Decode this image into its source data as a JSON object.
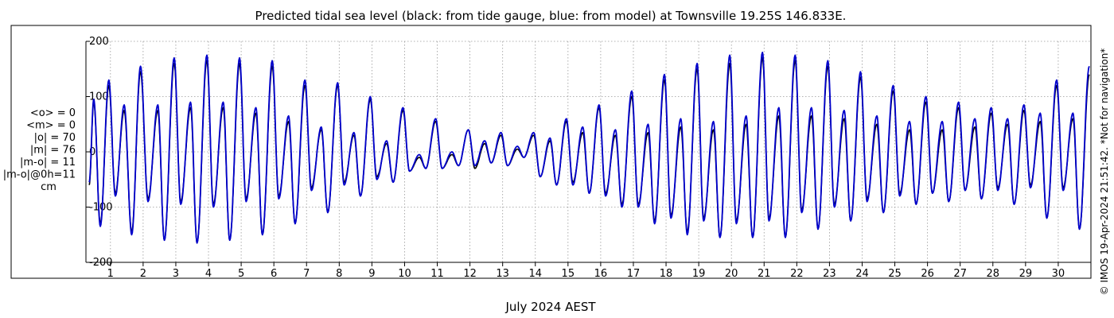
{
  "title": "Predicted tidal sea level (black: from tide gauge, blue: from model) at Townsville 19.25S 146.833E.",
  "side_note": "© IMOS 19-Apr-2024 21:51:42. *Not for navigation*",
  "stats": {
    "lines": [
      "<o> = 0",
      "<m> = 0",
      "|o| = 70",
      "|m| = 76",
      "|m-o| = 11",
      "|m-o|@0h=11",
      "cm"
    ]
  },
  "colors": {
    "observed": "#000000",
    "model": "#0000cc",
    "grid": "#999999"
  },
  "chart_data": {
    "type": "line",
    "title": "Predicted tidal sea level (black: from tide gauge, blue: from model) at Townsville 19.25S 146.833E.",
    "xlabel": "July 2024 AEST",
    "ylabel": "",
    "xlim": [
      0.25,
      31
    ],
    "ylim": [
      -200,
      200
    ],
    "x_ticks": [
      1,
      2,
      3,
      4,
      5,
      6,
      7,
      8,
      9,
      10,
      11,
      12,
      13,
      14,
      15,
      16,
      17,
      18,
      19,
      20,
      21,
      22,
      23,
      24,
      25,
      26,
      27,
      28,
      29,
      30
    ],
    "x_tick_labels": [
      "1",
      "2",
      "3",
      "4",
      "5",
      "6",
      "7",
      "8",
      "9",
      "10",
      "11",
      "12",
      "13",
      "14",
      "15",
      "16",
      "17",
      "18",
      "19",
      "20",
      "21",
      "22",
      "23",
      "24",
      "25",
      "26",
      "27",
      "28",
      "29",
      "30"
    ],
    "y_ticks": [
      -200,
      -100,
      0,
      100,
      200
    ],
    "y_tick_labels": [
      "-200",
      "-100",
      "0",
      "100",
      "200"
    ],
    "grid": true,
    "series": [
      {
        "label": "black: from tide gauge",
        "color": "#000000",
        "x": [
          0.35,
          0.49,
          0.69,
          0.95,
          1.15,
          1.42,
          1.65,
          1.92,
          2.15,
          2.45,
          2.65,
          2.95,
          3.15,
          3.45,
          3.65,
          3.95,
          4.15,
          4.45,
          4.65,
          4.95,
          5.15,
          5.45,
          5.65,
          5.95,
          6.15,
          6.45,
          6.65,
          6.95,
          7.15,
          7.45,
          7.65,
          7.95,
          8.15,
          8.45,
          8.65,
          8.95,
          9.15,
          9.45,
          9.65,
          9.95,
          10.15,
          10.45,
          10.65,
          10.95,
          11.15,
          11.45,
          11.65,
          11.95,
          12.15,
          12.45,
          12.65,
          12.95,
          13.15,
          13.45,
          13.65,
          13.95,
          14.15,
          14.45,
          14.65,
          14.95,
          15.15,
          15.45,
          15.65,
          15.95,
          16.15,
          16.45,
          16.65,
          16.95,
          17.15,
          17.45,
          17.65,
          17.95,
          18.15,
          18.45,
          18.65,
          18.95,
          19.15,
          19.45,
          19.65,
          19.95,
          20.15,
          20.45,
          20.65,
          20.95,
          21.15,
          21.45,
          21.65,
          21.95,
          22.15,
          22.45,
          22.65,
          22.95,
          23.15,
          23.45,
          23.65,
          23.95,
          24.15,
          24.45,
          24.65,
          24.95,
          25.15,
          25.45,
          25.65,
          25.95,
          26.15,
          26.45,
          26.65,
          26.95,
          27.15,
          27.45,
          27.65,
          27.95,
          28.15,
          28.45,
          28.65,
          28.95,
          29.15,
          29.45,
          29.65,
          29.95,
          30.15,
          30.45,
          30.65,
          30.95
        ],
        "values": [
          -60,
          90,
          -130,
          120,
          -75,
          75,
          -145,
          145,
          -85,
          75,
          -160,
          160,
          -90,
          80,
          -165,
          165,
          -95,
          80,
          -160,
          160,
          -85,
          70,
          -150,
          155,
          -80,
          55,
          -130,
          120,
          -65,
          40,
          -110,
          120,
          -55,
          30,
          -80,
          95,
          -45,
          15,
          -55,
          75,
          -35,
          -10,
          -30,
          55,
          -30,
          -5,
          -25,
          40,
          -30,
          15,
          -20,
          30,
          -25,
          5,
          -10,
          30,
          -45,
          20,
          -60,
          55,
          -55,
          35,
          -75,
          80,
          -75,
          30,
          -95,
          100,
          -95,
          35,
          -125,
          130,
          -115,
          45,
          -145,
          150,
          -120,
          40,
          -155,
          160,
          -125,
          50,
          -155,
          170,
          -120,
          65,
          -155,
          165,
          -105,
          65,
          -140,
          155,
          -95,
          60,
          -125,
          135,
          -85,
          50,
          -110,
          110,
          -75,
          40,
          -95,
          90,
          -75,
          40,
          -90,
          80,
          -70,
          45,
          -85,
          70,
          -65,
          50,
          -95,
          75,
          -60,
          55,
          -120,
          120,
          -65,
          60,
          -140,
          140
        ]
      },
      {
        "label": "blue: from model",
        "color": "#0000cc",
        "x": [
          0.35,
          0.49,
          0.69,
          0.95,
          1.15,
          1.42,
          1.65,
          1.92,
          2.15,
          2.45,
          2.65,
          2.95,
          3.15,
          3.45,
          3.65,
          3.95,
          4.15,
          4.45,
          4.65,
          4.95,
          5.15,
          5.45,
          5.65,
          5.95,
          6.15,
          6.45,
          6.65,
          6.95,
          7.15,
          7.45,
          7.65,
          7.95,
          8.15,
          8.45,
          8.65,
          8.95,
          9.15,
          9.45,
          9.65,
          9.95,
          10.15,
          10.45,
          10.65,
          10.95,
          11.15,
          11.45,
          11.65,
          11.95,
          12.15,
          12.45,
          12.65,
          12.95,
          13.15,
          13.45,
          13.65,
          13.95,
          14.15,
          14.45,
          14.65,
          14.95,
          15.15,
          15.45,
          15.65,
          15.95,
          16.15,
          16.45,
          16.65,
          16.95,
          17.15,
          17.45,
          17.65,
          17.95,
          18.15,
          18.45,
          18.65,
          18.95,
          19.15,
          19.45,
          19.65,
          19.95,
          20.15,
          20.45,
          20.65,
          20.95,
          21.15,
          21.45,
          21.65,
          21.95,
          22.15,
          22.45,
          22.65,
          22.95,
          23.15,
          23.45,
          23.65,
          23.95,
          24.15,
          24.45,
          24.65,
          24.95,
          25.15,
          25.45,
          25.65,
          25.95,
          26.15,
          26.45,
          26.65,
          26.95,
          27.15,
          27.45,
          27.65,
          27.95,
          28.15,
          28.45,
          28.65,
          28.95,
          29.15,
          29.45,
          29.65,
          29.95,
          30.15,
          30.45,
          30.65,
          30.95
        ],
        "values": [
          -55,
          95,
          -135,
          130,
          -80,
          85,
          -150,
          155,
          -90,
          85,
          -160,
          170,
          -95,
          90,
          -165,
          175,
          -100,
          90,
          -160,
          170,
          -90,
          80,
          -150,
          165,
          -85,
          65,
          -130,
          130,
          -70,
          45,
          -110,
          125,
          -60,
          35,
          -80,
          100,
          -50,
          20,
          -55,
          80,
          -35,
          -5,
          -30,
          60,
          -30,
          0,
          -25,
          40,
          -25,
          20,
          -20,
          35,
          -25,
          10,
          -10,
          35,
          -45,
          25,
          -60,
          60,
          -60,
          45,
          -75,
          85,
          -80,
          40,
          -100,
          110,
          -100,
          50,
          -130,
          140,
          -120,
          60,
          -150,
          160,
          -125,
          55,
          -155,
          175,
          -130,
          65,
          -155,
          180,
          -125,
          80,
          -155,
          175,
          -110,
          80,
          -140,
          165,
          -100,
          75,
          -125,
          145,
          -90,
          65,
          -110,
          120,
          -80,
          55,
          -95,
          100,
          -75,
          55,
          -90,
          90,
          -70,
          60,
          -85,
          80,
          -70,
          60,
          -95,
          85,
          -65,
          70,
          -120,
          130,
          -70,
          70,
          -140,
          155
        ]
      }
    ]
  }
}
